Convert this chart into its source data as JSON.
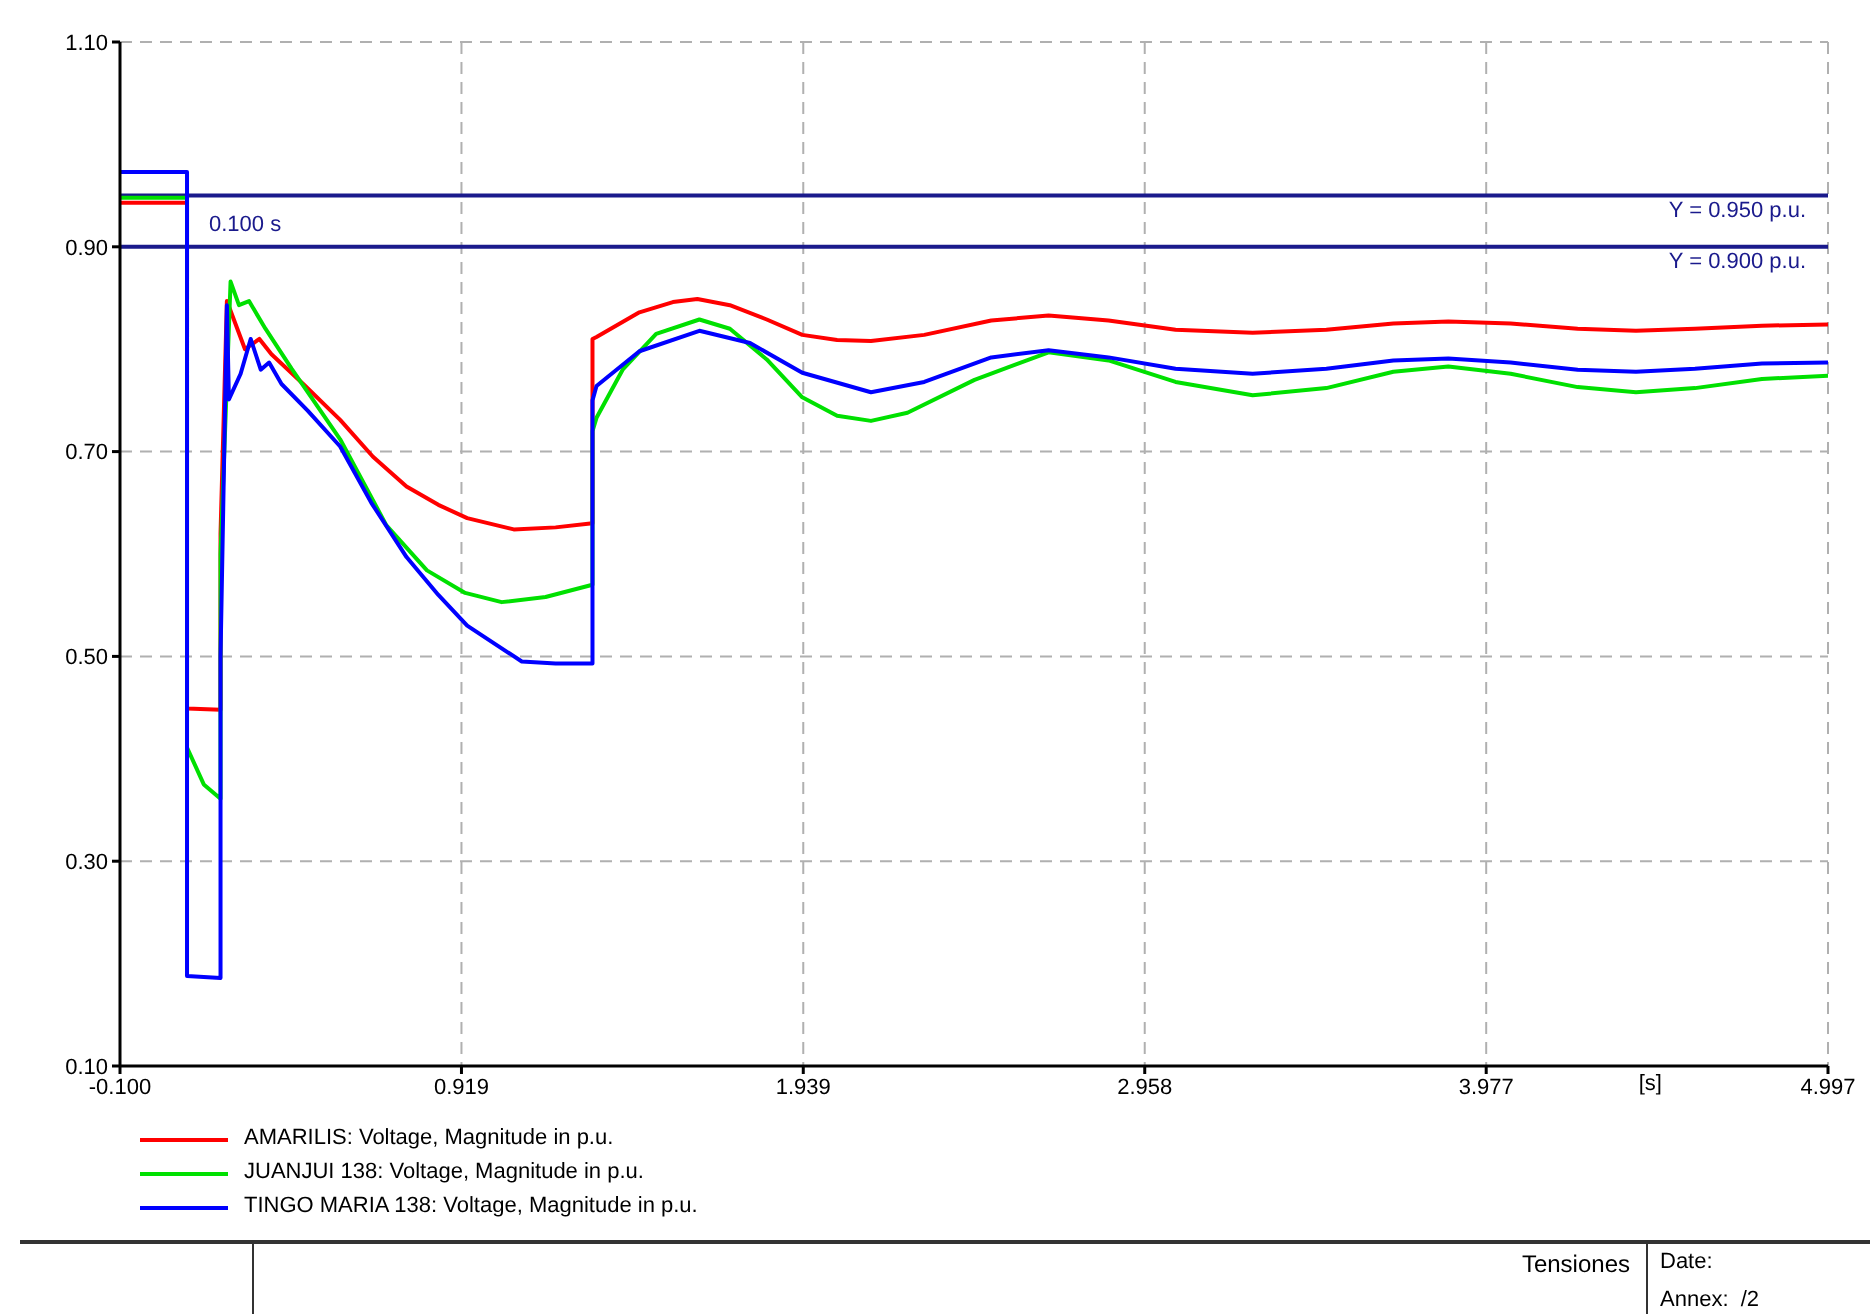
{
  "chart_data": {
    "type": "line",
    "title": "Tensiones",
    "xlabel": "[s]",
    "xlim": [
      -0.1,
      4.997
    ],
    "ylim": [
      0.1,
      1.1
    ],
    "xticks": [
      {
        "value": -0.1,
        "label": "-0.100"
      },
      {
        "value": 0.919,
        "label": "0.919"
      },
      {
        "value": 1.939,
        "label": "1.939"
      },
      {
        "value": 2.958,
        "label": "2.958"
      },
      {
        "value": 3.977,
        "label": "3.977"
      },
      {
        "value": 4.997,
        "label": "4.997"
      }
    ],
    "yticks": [
      {
        "value": 0.1,
        "label": "0.10"
      },
      {
        "value": 0.3,
        "label": "0.30"
      },
      {
        "value": 0.5,
        "label": "0.50"
      },
      {
        "value": 0.7,
        "label": "0.70"
      },
      {
        "value": 0.9,
        "label": "0.90"
      },
      {
        "value": 1.1,
        "label": "1.10"
      }
    ],
    "grid": true,
    "legend": "bottom left",
    "marker": "none",
    "line_style": "solid",
    "ref_lines": [
      {
        "axis": "y",
        "value": 0.95,
        "label": "Y =  0.950 p.u.",
        "color": "#1a1a8c"
      },
      {
        "axis": "y",
        "value": 0.9,
        "label": "Y =  0.900 p.u.",
        "color": "#1a1a8c"
      }
    ],
    "annotations": [
      {
        "text": "0.100 s",
        "x": 0.1,
        "y": 0.9
      },
      "Date:",
      "Annex:  /2"
    ],
    "series": [
      {
        "name": "AMARILIS: Voltage, Magnitude in p.u.",
        "color": "#ff0000",
        "x": [
          -0.1,
          0.1,
          0.1,
          0.2,
          0.2,
          0.219,
          0.273,
          0.316,
          0.352,
          0.45,
          0.557,
          0.655,
          0.755,
          0.85,
          0.936,
          1.075,
          1.2,
          1.31,
          1.31,
          1.322,
          1.45,
          1.55,
          1.623,
          1.72,
          1.83,
          1.936,
          2.04,
          2.141,
          2.3,
          2.5,
          2.671,
          2.85,
          3.05,
          3.28,
          3.5,
          3.7,
          3.864,
          4.05,
          4.25,
          4.424,
          4.6,
          4.8,
          4.997
        ],
        "values": [
          0.943,
          0.943,
          0.449,
          0.448,
          0.62,
          0.847,
          0.8,
          0.81,
          0.795,
          0.765,
          0.731,
          0.695,
          0.666,
          0.648,
          0.635,
          0.624,
          0.626,
          0.63,
          0.81,
          0.812,
          0.836,
          0.846,
          0.849,
          0.843,
          0.829,
          0.814,
          0.809,
          0.808,
          0.814,
          0.828,
          0.833,
          0.828,
          0.819,
          0.816,
          0.819,
          0.825,
          0.827,
          0.825,
          0.82,
          0.818,
          0.82,
          0.823,
          0.824
        ]
      },
      {
        "name": "JUANJUI 138: Voltage, Magnitude in p.u.",
        "color": "#00e000",
        "x": [
          -0.1,
          0.1,
          0.1,
          0.15,
          0.2,
          0.2,
          0.23,
          0.255,
          0.285,
          0.334,
          0.412,
          0.557,
          0.695,
          0.816,
          0.93,
          1.039,
          1.17,
          1.31,
          1.31,
          1.322,
          1.4,
          1.5,
          1.629,
          1.72,
          1.83,
          1.936,
          2.04,
          2.141,
          2.25,
          2.45,
          2.671,
          2.85,
          3.05,
          3.28,
          3.5,
          3.7,
          3.864,
          4.05,
          4.25,
          4.424,
          4.6,
          4.8,
          4.997
        ],
        "values": [
          0.948,
          0.948,
          0.411,
          0.375,
          0.361,
          0.6,
          0.866,
          0.843,
          0.847,
          0.82,
          0.781,
          0.712,
          0.628,
          0.584,
          0.562,
          0.553,
          0.558,
          0.57,
          0.72,
          0.733,
          0.78,
          0.815,
          0.829,
          0.82,
          0.79,
          0.753,
          0.735,
          0.73,
          0.738,
          0.77,
          0.797,
          0.789,
          0.768,
          0.755,
          0.762,
          0.778,
          0.783,
          0.776,
          0.763,
          0.758,
          0.762,
          0.771,
          0.774
        ]
      },
      {
        "name": "TINGO MARIA 138: Voltage, Magnitude in p.u.",
        "color": "#0000ff",
        "x": [
          -0.1,
          0.1,
          0.1,
          0.2,
          0.2,
          0.219,
          0.225,
          0.26,
          0.29,
          0.32,
          0.345,
          0.382,
          0.46,
          0.557,
          0.65,
          0.755,
          0.85,
          0.936,
          1.099,
          1.2,
          1.31,
          1.31,
          1.322,
          1.45,
          1.629,
          1.78,
          1.936,
          2.141,
          2.3,
          2.5,
          2.671,
          2.85,
          3.05,
          3.28,
          3.5,
          3.7,
          3.864,
          4.05,
          4.25,
          4.424,
          4.6,
          4.8,
          4.997
        ],
        "values": [
          0.973,
          0.973,
          0.188,
          0.186,
          0.5,
          0.843,
          0.751,
          0.776,
          0.81,
          0.78,
          0.787,
          0.766,
          0.74,
          0.705,
          0.65,
          0.597,
          0.56,
          0.53,
          0.495,
          0.493,
          0.493,
          0.75,
          0.764,
          0.798,
          0.818,
          0.806,
          0.777,
          0.758,
          0.768,
          0.792,
          0.799,
          0.792,
          0.781,
          0.776,
          0.781,
          0.789,
          0.791,
          0.787,
          0.78,
          0.778,
          0.781,
          0.786,
          0.787
        ]
      }
    ]
  }
}
